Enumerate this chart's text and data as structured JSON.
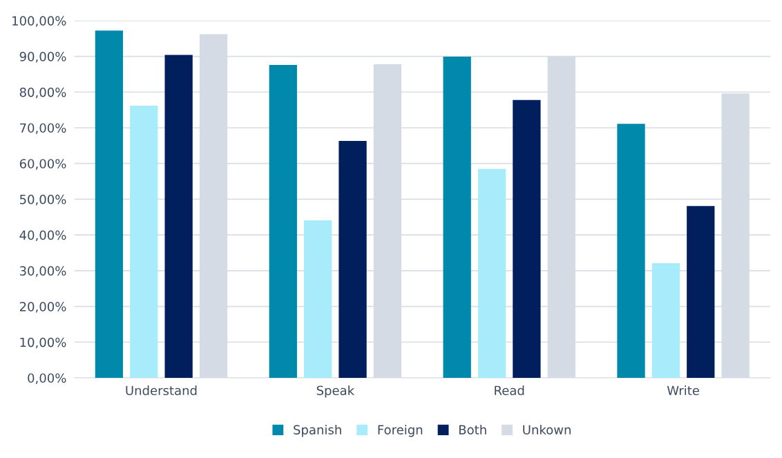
{
  "chart_data": {
    "type": "bar",
    "categories": [
      "Understand",
      "Speak",
      "Read",
      "Write"
    ],
    "series": [
      {
        "name": "Spanish",
        "color": "#0089ab",
        "values": [
          97.2,
          87.6,
          89.9,
          71.1
        ]
      },
      {
        "name": "Foreign",
        "color": "#a8ecfc",
        "values": [
          76.2,
          44.1,
          58.5,
          32.1
        ]
      },
      {
        "name": "Both",
        "color": "#001f5c",
        "values": [
          90.4,
          66.3,
          77.8,
          48.1
        ]
      },
      {
        "name": "Unkown",
        "color": "#d5dbe4",
        "values": [
          96.2,
          87.8,
          89.9,
          79.6
        ]
      }
    ],
    "ylim": [
      0,
      100
    ],
    "yticks": [
      {
        "value": 0,
        "label": "0,00%"
      },
      {
        "value": 10,
        "label": "10,00%"
      },
      {
        "value": 20,
        "label": "20,00%"
      },
      {
        "value": 30,
        "label": "30,00%"
      },
      {
        "value": 40,
        "label": "40,00%"
      },
      {
        "value": 50,
        "label": "50,00%"
      },
      {
        "value": 60,
        "label": "60,00%"
      },
      {
        "value": 70,
        "label": "70,00%"
      },
      {
        "value": 80,
        "label": "80,00%"
      },
      {
        "value": 90,
        "label": "90,00%"
      },
      {
        "value": 100,
        "label": "100,00%"
      }
    ],
    "grid": "y",
    "legend": "bottom"
  }
}
